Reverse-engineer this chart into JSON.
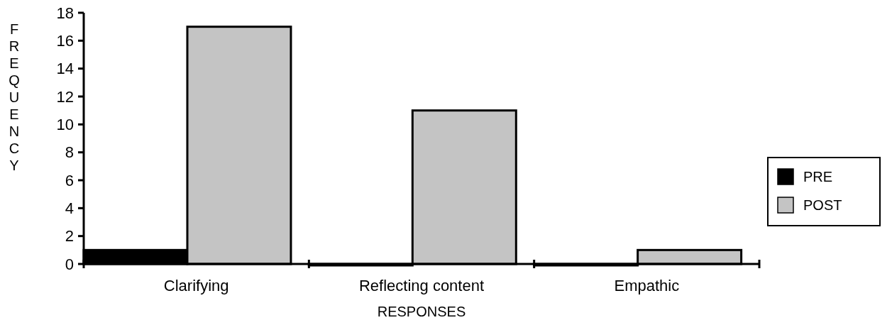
{
  "chart_data": {
    "type": "bar",
    "xlabel": "RESPONSES",
    "ylabel": "FREQUENCY",
    "categories": [
      "Clarifying",
      "Reflecting content",
      "Empathic"
    ],
    "series": [
      {
        "name": "PRE",
        "color": "#000000",
        "values": [
          1,
          0,
          0
        ]
      },
      {
        "name": "POST",
        "color": "#c4c4c4",
        "values": [
          17,
          11,
          1
        ]
      }
    ],
    "ylim": [
      0,
      18
    ],
    "yticks": [
      0,
      2,
      4,
      6,
      8,
      10,
      12,
      14,
      16,
      18
    ],
    "legend": "right"
  }
}
